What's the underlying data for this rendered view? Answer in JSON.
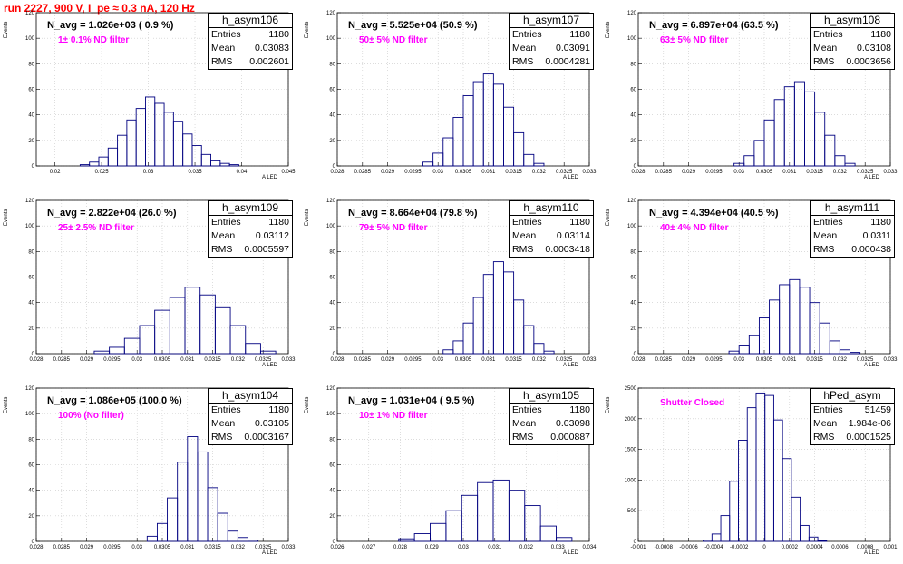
{
  "run_title": "run 2227,   900 V, I_pe ≈ 0.3 nA, 120 Hz",
  "ylabel": "Events",
  "xlabel": "A LED",
  "chart_data": [
    {
      "type": "bar",
      "name": "h_asym106",
      "entries": "1180",
      "mean": "0.03083",
      "rms": "0.002601",
      "navg": "N_avg = 1.026e+03 ( 0.9 %)",
      "filter": "1± 0.1% ND filter",
      "xlim": [
        0.018,
        0.045
      ],
      "ylim": [
        0,
        120
      ],
      "xticks": [
        0.02,
        0.025,
        0.03,
        0.035,
        0.04,
        0.045
      ],
      "xtick_labels": [
        "0.02",
        "0.025",
        "0.03",
        "0.035",
        "0.04",
        "0.045"
      ],
      "yticks": [
        0,
        20,
        40,
        60,
        80,
        100,
        120
      ],
      "x": [
        0.0232,
        0.0242,
        0.0252,
        0.0262,
        0.0272,
        0.0282,
        0.0292,
        0.0302,
        0.0312,
        0.0322,
        0.0332,
        0.0342,
        0.0352,
        0.0362,
        0.0372,
        0.0382,
        0.0392
      ],
      "values": [
        1,
        3,
        7,
        14,
        24,
        36,
        45,
        54,
        49,
        42,
        35,
        25,
        16,
        9,
        4,
        2,
        1
      ]
    },
    {
      "type": "bar",
      "name": "h_asym107",
      "entries": "1180",
      "mean": "0.03091",
      "rms": "0.0004281",
      "navg": "N_avg = 5.525e+04 (50.9 %)",
      "filter": "50± 5% ND filter",
      "xlim": [
        0.028,
        0.033
      ],
      "ylim": [
        0,
        120
      ],
      "xticks": [
        0.028,
        0.0285,
        0.029,
        0.0295,
        0.03,
        0.0305,
        0.031,
        0.0315,
        0.032,
        0.0325,
        0.033
      ],
      "xtick_labels": [
        "0.028",
        "0.0285",
        "0.029",
        "0.0295",
        "0.03",
        "0.0305",
        "0.031",
        "0.0315",
        "0.032",
        "0.0325",
        "0.033"
      ],
      "yticks": [
        0,
        20,
        40,
        60,
        80,
        100,
        120
      ],
      "x": [
        0.0298,
        0.03,
        0.0302,
        0.0304,
        0.0306,
        0.0308,
        0.031,
        0.0312,
        0.0314,
        0.0316,
        0.0318,
        0.032
      ],
      "values": [
        3,
        10,
        22,
        38,
        55,
        66,
        72,
        64,
        46,
        26,
        9,
        2
      ]
    },
    {
      "type": "bar",
      "name": "h_asym108",
      "entries": "1180",
      "mean": "0.03108",
      "rms": "0.0003656",
      "navg": "N_avg = 6.897e+04 (63.5 %)",
      "filter": "63± 5% ND filter",
      "xlim": [
        0.028,
        0.033
      ],
      "ylim": [
        0,
        120
      ],
      "xticks": [
        0.028,
        0.0285,
        0.029,
        0.0295,
        0.03,
        0.0305,
        0.031,
        0.0315,
        0.032,
        0.0325,
        0.033
      ],
      "xtick_labels": [
        "0.028",
        "0.0285",
        "0.029",
        "0.0295",
        "0.03",
        "0.0305",
        "0.031",
        "0.0315",
        "0.032",
        "0.0325",
        "0.033"
      ],
      "yticks": [
        0,
        20,
        40,
        60,
        80,
        100,
        120
      ],
      "x": [
        0.03,
        0.0302,
        0.0304,
        0.0306,
        0.0308,
        0.031,
        0.0312,
        0.0314,
        0.0316,
        0.0318,
        0.032,
        0.0322
      ],
      "values": [
        2,
        8,
        20,
        36,
        52,
        62,
        66,
        58,
        42,
        24,
        8,
        2
      ]
    },
    {
      "type": "bar",
      "name": "h_asym109",
      "entries": "1180",
      "mean": "0.03112",
      "rms": "0.0005597",
      "navg": "N_avg = 2.822e+04 (26.0 %)",
      "filter": "25± 2.5% ND filter",
      "xlim": [
        0.028,
        0.033
      ],
      "ylim": [
        0,
        120
      ],
      "xticks": [
        0.028,
        0.0285,
        0.029,
        0.0295,
        0.03,
        0.0305,
        0.031,
        0.0315,
        0.032,
        0.0325,
        0.033
      ],
      "xtick_labels": [
        "0.028",
        "0.0285",
        "0.029",
        "0.0295",
        "0.03",
        "0.0305",
        "0.031",
        "0.0315",
        "0.032",
        "0.0325",
        "0.033"
      ],
      "yticks": [
        0,
        20,
        40,
        60,
        80,
        100,
        120
      ],
      "x": [
        0.0293,
        0.0296,
        0.0299,
        0.0302,
        0.0305,
        0.0308,
        0.0311,
        0.0314,
        0.0317,
        0.032,
        0.0323,
        0.0326
      ],
      "values": [
        2,
        5,
        12,
        22,
        34,
        44,
        52,
        46,
        36,
        22,
        8,
        2
      ]
    },
    {
      "type": "bar",
      "name": "h_asym110",
      "entries": "1180",
      "mean": "0.03114",
      "rms": "0.0003418",
      "navg": "N_avg = 8.664e+04 (79.8 %)",
      "filter": "79± 5% ND filter",
      "xlim": [
        0.028,
        0.033
      ],
      "ylim": [
        0,
        120
      ],
      "xticks": [
        0.028,
        0.0285,
        0.029,
        0.0295,
        0.03,
        0.0305,
        0.031,
        0.0315,
        0.032,
        0.0325,
        0.033
      ],
      "xtick_labels": [
        "0.028",
        "0.0285",
        "0.029",
        "0.0295",
        "0.03",
        "0.0305",
        "0.031",
        "0.0315",
        "0.032",
        "0.0325",
        "0.033"
      ],
      "yticks": [
        0,
        20,
        40,
        60,
        80,
        100,
        120
      ],
      "x": [
        0.0302,
        0.0304,
        0.0306,
        0.0308,
        0.031,
        0.0312,
        0.0314,
        0.0316,
        0.0318,
        0.032,
        0.0322
      ],
      "values": [
        3,
        10,
        24,
        44,
        62,
        72,
        64,
        42,
        22,
        8,
        2
      ]
    },
    {
      "type": "bar",
      "name": "h_asym111",
      "entries": "1180",
      "mean": "0.0311",
      "rms": "0.000438",
      "navg": "N_avg = 4.394e+04 (40.5 %)",
      "filter": "40± 4% ND filter",
      "xlim": [
        0.028,
        0.033
      ],
      "ylim": [
        0,
        120
      ],
      "xticks": [
        0.028,
        0.0285,
        0.029,
        0.0295,
        0.03,
        0.0305,
        0.031,
        0.0315,
        0.032,
        0.0325,
        0.033
      ],
      "xtick_labels": [
        "0.028",
        "0.0285",
        "0.029",
        "0.0295",
        "0.03",
        "0.0305",
        "0.031",
        "0.0315",
        "0.032",
        "0.0325",
        "0.033"
      ],
      "yticks": [
        0,
        20,
        40,
        60,
        80,
        100,
        120
      ],
      "x": [
        0.0299,
        0.0301,
        0.0303,
        0.0305,
        0.0307,
        0.0309,
        0.0311,
        0.0313,
        0.0315,
        0.0317,
        0.0319,
        0.0321,
        0.0323
      ],
      "values": [
        2,
        6,
        14,
        28,
        42,
        54,
        58,
        52,
        40,
        24,
        10,
        3,
        1
      ]
    },
    {
      "type": "bar",
      "name": "h_asym104",
      "entries": "1180",
      "mean": "0.03105",
      "rms": "0.0003167",
      "navg": "N_avg = 1.086e+05 (100.0 %)",
      "filter": "100% (No filter)",
      "xlim": [
        0.028,
        0.033
      ],
      "ylim": [
        0,
        120
      ],
      "xticks": [
        0.028,
        0.0285,
        0.029,
        0.0295,
        0.03,
        0.0305,
        0.031,
        0.0315,
        0.032,
        0.0325,
        0.033
      ],
      "xtick_labels": [
        "0.028",
        "0.0285",
        "0.029",
        "0.0295",
        "0.03",
        "0.0305",
        "0.031",
        "0.0315",
        "0.032",
        "0.0325",
        "0.033"
      ],
      "yticks": [
        0,
        20,
        40,
        60,
        80,
        100,
        120
      ],
      "x": [
        0.0303,
        0.0305,
        0.0307,
        0.0309,
        0.0311,
        0.0313,
        0.0315,
        0.0317,
        0.0319,
        0.0321,
        0.0323
      ],
      "values": [
        4,
        14,
        34,
        62,
        82,
        70,
        42,
        22,
        8,
        3,
        1
      ]
    },
    {
      "type": "bar",
      "name": "h_asym105",
      "entries": "1180",
      "mean": "0.03098",
      "rms": "0.000887",
      "navg": "N_avg = 1.031e+04 ( 9.5 %)",
      "filter": "10± 1% ND filter",
      "xlim": [
        0.026,
        0.034
      ],
      "ylim": [
        0,
        120
      ],
      "xticks": [
        0.026,
        0.027,
        0.028,
        0.029,
        0.03,
        0.031,
        0.032,
        0.033,
        0.034
      ],
      "xtick_labels": [
        "0.026",
        "0.027",
        "0.028",
        "0.029",
        "0.03",
        "0.031",
        "0.032",
        "0.033",
        "0.034"
      ],
      "yticks": [
        0,
        20,
        40,
        60,
        80,
        100,
        120
      ],
      "x": [
        0.0282,
        0.0287,
        0.0292,
        0.0297,
        0.0302,
        0.0307,
        0.0312,
        0.0317,
        0.0322,
        0.0327,
        0.0332
      ],
      "values": [
        2,
        6,
        14,
        24,
        36,
        46,
        48,
        40,
        28,
        12,
        3
      ]
    },
    {
      "type": "bar",
      "name": "hPed_asym",
      "entries": "51459",
      "mean": "1.984e-06",
      "rms": "0.0001525",
      "navg": "",
      "filter": "Shutter Closed",
      "xlim": [
        -0.001,
        0.001
      ],
      "ylim": [
        0,
        2500
      ],
      "xticks": [
        -0.001,
        -0.0008,
        -0.0006,
        -0.0004,
        -0.0002,
        0,
        0.0002,
        0.0004,
        0.0006,
        0.0008,
        0.001
      ],
      "xtick_labels": [
        "-0.001",
        "-0.0008",
        "-0.0006",
        "-0.0004",
        "-0.0002",
        "0",
        "0.0002",
        "0.0004",
        "0.0006",
        "0.0008",
        "0.001"
      ],
      "yticks": [
        0,
        500,
        1000,
        1500,
        2000,
        2500
      ],
      "x": [
        -0.00045,
        -0.00038,
        -0.00031,
        -0.00024,
        -0.00017,
        -0.0001,
        -3e-05,
        4e-05,
        0.00011,
        0.00018,
        0.00025,
        0.00032,
        0.00039,
        0.00046
      ],
      "values": [
        20,
        120,
        420,
        980,
        1650,
        2180,
        2420,
        2380,
        1980,
        1350,
        720,
        260,
        70,
        10
      ]
    }
  ]
}
